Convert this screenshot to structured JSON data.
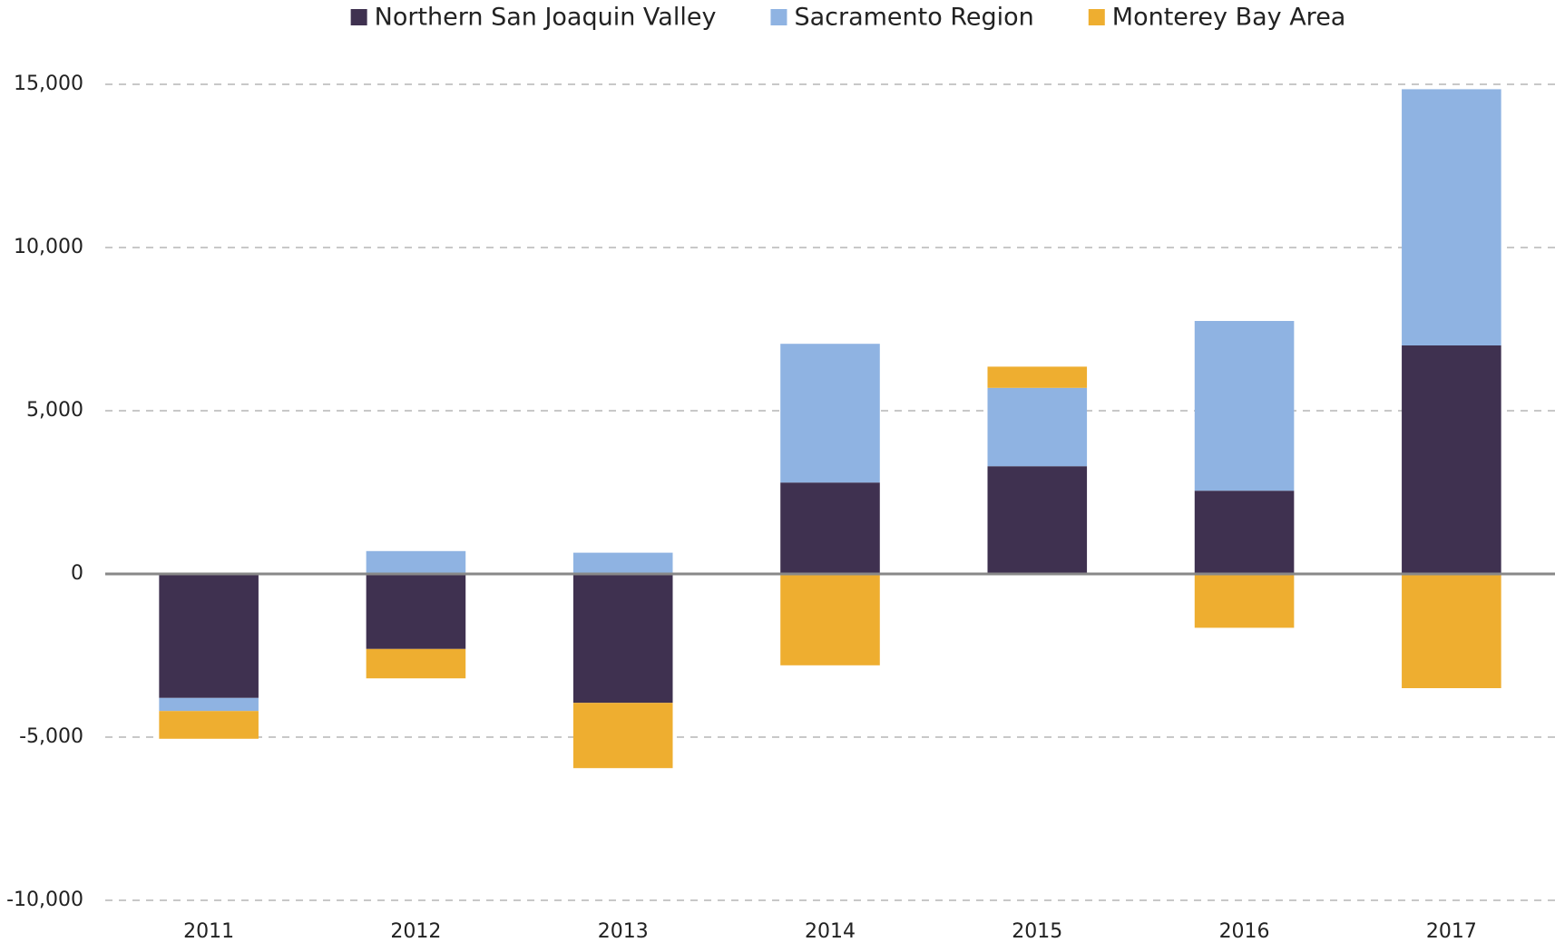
{
  "chart_data": {
    "type": "stacked_bar",
    "categories": [
      "2011",
      "2012",
      "2013",
      "2014",
      "2015",
      "2016",
      "2017"
    ],
    "series": [
      {
        "name": "Northern San Joaquin Valley",
        "color": "#3f3150",
        "values": [
          -3800,
          -2300,
          -3950,
          2800,
          3300,
          2550,
          7000
        ]
      },
      {
        "name": "Sacramento Region",
        "color": "#8fb3e2",
        "values": [
          -400,
          700,
          650,
          4250,
          2400,
          5200,
          7850
        ]
      },
      {
        "name": "Monterey Bay Area",
        "color": "#eeae30",
        "values": [
          -850,
          -900,
          -2000,
          -2800,
          650,
          -1650,
          -3500
        ]
      }
    ],
    "ylim": [
      -10000,
      15000
    ],
    "yticks": [
      {
        "value": -10000,
        "label": "-10,000"
      },
      {
        "value": -5000,
        "label": "-5,000"
      },
      0,
      {
        "value": 5000,
        "label": "5,000"
      },
      {
        "value": 10000,
        "label": "10,000"
      },
      {
        "value": 15000,
        "label": "15,000"
      }
    ],
    "grid": true,
    "legend": "top"
  }
}
